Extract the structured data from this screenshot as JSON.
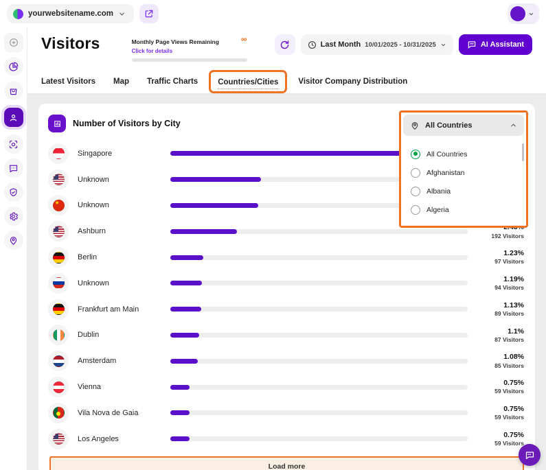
{
  "topbar": {
    "website": "yourwebsitename.com"
  },
  "header": {
    "title": "Visitors",
    "quota_label": "Monthly Page Views Remaining",
    "quota_link": "Click for details",
    "quota_value": "∞",
    "period_label": "Last Month",
    "period_range": "10/01/2025 - 10/31/2025",
    "ai_button": "AI Assistant"
  },
  "tabs": [
    {
      "label": "Latest Visitors",
      "active": false
    },
    {
      "label": "Map",
      "active": false
    },
    {
      "label": "Traffic Charts",
      "active": false
    },
    {
      "label": "Countries/Cities",
      "active": true,
      "annotated": true
    },
    {
      "label": "Visitor Company Distribution",
      "active": false
    }
  ],
  "card": {
    "title": "Number of Visitors by City",
    "load_more": "Load more"
  },
  "country_filter": {
    "selected": "All Countries",
    "expanded": true,
    "options": [
      "All Countries",
      "Afghanistan",
      "Albania",
      "Algeria"
    ]
  },
  "chart_data": {
    "type": "bar",
    "orientation": "horizontal",
    "title": "Number of Visitors by City",
    "bar_color": "#5a0fc8",
    "note": "percent/visitors for first three rows are hidden behind the expanded country dropdown; bar_pct is bar length as % of track",
    "rows": [
      {
        "city": "Singapore",
        "flag": "sg",
        "bar_pct": 100,
        "percent": "",
        "visitors": ""
      },
      {
        "city": "Unknown",
        "flag": "us",
        "bar_pct": 30.5,
        "percent": "",
        "visitors": ""
      },
      {
        "city": "Unknown",
        "flag": "cn",
        "bar_pct": 29.5,
        "percent": "",
        "visitors": ""
      },
      {
        "city": "Ashburn",
        "flag": "us",
        "bar_pct": 22.4,
        "percent": "2.43%",
        "visitors": "192 Visitors"
      },
      {
        "city": "Berlin",
        "flag": "de",
        "bar_pct": 11.2,
        "percent": "1.23%",
        "visitors": "97 Visitors"
      },
      {
        "city": "Unknown",
        "flag": "ru",
        "bar_pct": 10.6,
        "percent": "1.19%",
        "visitors": "94 Visitors"
      },
      {
        "city": "Frankfurt am Main",
        "flag": "de",
        "bar_pct": 10.3,
        "percent": "1.13%",
        "visitors": "89 Visitors"
      },
      {
        "city": "Dublin",
        "flag": "ie",
        "bar_pct": 9.6,
        "percent": "1.1%",
        "visitors": "87 Visitors"
      },
      {
        "city": "Amsterdam",
        "flag": "nl",
        "bar_pct": 9.3,
        "percent": "1.08%",
        "visitors": "85 Visitors"
      },
      {
        "city": "Vienna",
        "flag": "at",
        "bar_pct": 6.5,
        "percent": "0.75%",
        "visitors": "59 Visitors"
      },
      {
        "city": "Vila Nova de Gaia",
        "flag": "pt",
        "bar_pct": 6.5,
        "percent": "0.75%",
        "visitors": "59 Visitors"
      },
      {
        "city": "Los Angeles",
        "flag": "us",
        "bar_pct": 6.5,
        "percent": "0.75%",
        "visitors": "59 Visitors"
      }
    ]
  },
  "colors": {
    "brand_purple": "#6001d2",
    "bar_purple": "#5a0fc8",
    "annotation_orange": "#ee7224",
    "radio_green": "#00a24b",
    "quota_infinity_orange": "#ef6c1a"
  }
}
